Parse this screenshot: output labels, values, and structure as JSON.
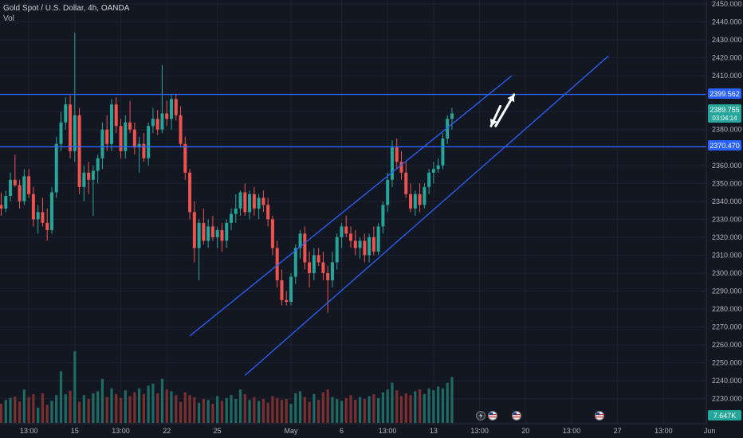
{
  "header": {
    "title": "Gold Spot / U.S. Dollar, 4h, OANDA",
    "volume_label": "Vol"
  },
  "colors": {
    "background": "#131722",
    "grid": "#1e2230",
    "up": "#26a69a",
    "down": "#ef5350",
    "up_volume": "#1e6b63",
    "down_volume": "#7a2f31",
    "horizontal_level": "#2962ff",
    "channel": "#2962ff",
    "axis_text": "#b2b5be",
    "arrow": "#ffffff"
  },
  "chart_data": {
    "type": "candlestick",
    "y_axis": {
      "ylim": [
        2220,
        2450
      ],
      "tick_labels": [
        "2450.000",
        "2440.000",
        "2430.000",
        "2420.000",
        "2410.000",
        "2400.000",
        "2390.000",
        "2380.000",
        "2370.000",
        "2360.000",
        "2350.000",
        "2340.000",
        "2330.000",
        "2320.000",
        "2310.000",
        "2300.000",
        "2290.000",
        "2280.000",
        "2270.000",
        "2260.000",
        "2250.000",
        "2240.000",
        "2230.000"
      ],
      "tick_values": [
        2450,
        2440,
        2430,
        2420,
        2410,
        2400,
        2390,
        2380,
        2370,
        2360,
        2350,
        2340,
        2330,
        2320,
        2310,
        2300,
        2290,
        2280,
        2270,
        2260,
        2250,
        2240,
        2230
      ]
    },
    "x_axis": {
      "tick_labels": [
        "13:00",
        "15",
        "13:00",
        "22",
        "25",
        "May",
        "6",
        "13:00",
        "13",
        "13:00",
        "20",
        "13:00",
        "27",
        "13:00",
        "Jun"
      ],
      "tick_bar_index": [
        6,
        16,
        26,
        36,
        47,
        63,
        74,
        84,
        94,
        104,
        114,
        124,
        134,
        144,
        154
      ]
    },
    "price_labels": {
      "level_high": "2399.562",
      "current_price": "2389.755",
      "countdown": "03:04:14",
      "level_low": "2370.470",
      "volume_value": "7.647K"
    },
    "horizontal_levels": [
      2399.562,
      2370.47
    ],
    "channel": {
      "upper": {
        "from": {
          "bar": 41,
          "price": 2265
        },
        "to": {
          "bar": 111,
          "price": 2410
        }
      },
      "lower": {
        "from": {
          "bar": 53,
          "price": 2243
        },
        "to": {
          "bar": 132,
          "price": 2421
        }
      }
    },
    "projection_arrows": [
      {
        "from": {
          "bar": 108.5,
          "price": 2393
        },
        "to": {
          "bar": 106.5,
          "price": 2382
        }
      },
      {
        "from": {
          "bar": 107.5,
          "price": 2382
        },
        "to": {
          "bar": 111.5,
          "price": 2399.5
        }
      }
    ],
    "candles": [
      [
        2338,
        2345,
        2332,
        2336
      ],
      [
        2336,
        2346,
        2334,
        2343
      ],
      [
        2343,
        2356,
        2340,
        2352
      ],
      [
        2352,
        2366,
        2348,
        2349
      ],
      [
        2349,
        2352,
        2336,
        2340
      ],
      [
        2340,
        2358,
        2338,
        2354
      ],
      [
        2354,
        2358,
        2342,
        2344
      ],
      [
        2344,
        2348,
        2326,
        2330
      ],
      [
        2330,
        2338,
        2322,
        2334
      ],
      [
        2334,
        2342,
        2326,
        2328
      ],
      [
        2328,
        2336,
        2318,
        2324
      ],
      [
        2324,
        2348,
        2322,
        2345
      ],
      [
        2345,
        2376,
        2342,
        2372
      ],
      [
        2372,
        2390,
        2368,
        2384
      ],
      [
        2384,
        2398,
        2380,
        2394
      ],
      [
        2394,
        2399,
        2364,
        2368
      ],
      [
        2368,
        2434,
        2362,
        2388
      ],
      [
        2388,
        2392,
        2344,
        2348
      ],
      [
        2348,
        2360,
        2340,
        2356
      ],
      [
        2356,
        2362,
        2344,
        2352
      ],
      [
        2352,
        2360,
        2332,
        2357
      ],
      [
        2357,
        2366,
        2350,
        2364
      ],
      [
        2364,
        2384,
        2358,
        2380
      ],
      [
        2380,
        2388,
        2368,
        2372
      ],
      [
        2372,
        2397,
        2368,
        2394
      ],
      [
        2394,
        2398,
        2378,
        2382
      ],
      [
        2382,
        2386,
        2364,
        2368
      ],
      [
        2368,
        2388,
        2364,
        2384
      ],
      [
        2384,
        2396,
        2378,
        2380
      ],
      [
        2380,
        2384,
        2366,
        2370
      ],
      [
        2370,
        2376,
        2356,
        2372
      ],
      [
        2372,
        2378,
        2362,
        2364
      ],
      [
        2364,
        2384,
        2360,
        2382
      ],
      [
        2382,
        2392,
        2378,
        2386
      ],
      [
        2386,
        2391,
        2377,
        2380
      ],
      [
        2380,
        2416,
        2378,
        2389
      ],
      [
        2389,
        2396,
        2382,
        2386
      ],
      [
        2386,
        2400,
        2380,
        2397
      ],
      [
        2397,
        2400,
        2385,
        2388
      ],
      [
        2388,
        2393,
        2370,
        2372
      ],
      [
        2372,
        2376,
        2352,
        2356
      ],
      [
        2356,
        2358,
        2330,
        2334
      ],
      [
        2334,
        2340,
        2306,
        2314
      ],
      [
        2314,
        2330,
        2296,
        2328
      ],
      [
        2328,
        2336,
        2316,
        2318
      ],
      [
        2318,
        2330,
        2314,
        2326
      ],
      [
        2326,
        2332,
        2318,
        2320
      ],
      [
        2320,
        2326,
        2314,
        2324
      ],
      [
        2324,
        2328,
        2312,
        2318
      ],
      [
        2318,
        2330,
        2314,
        2328
      ],
      [
        2328,
        2336,
        2324,
        2333
      ],
      [
        2333,
        2344,
        2328,
        2336
      ],
      [
        2336,
        2346,
        2332,
        2345
      ],
      [
        2345,
        2350,
        2332,
        2334
      ],
      [
        2334,
        2346,
        2330,
        2344
      ],
      [
        2344,
        2348,
        2332,
        2336
      ],
      [
        2336,
        2344,
        2330,
        2342
      ],
      [
        2342,
        2346,
        2334,
        2338
      ],
      [
        2338,
        2342,
        2326,
        2330
      ],
      [
        2330,
        2332,
        2310,
        2314
      ],
      [
        2314,
        2318,
        2292,
        2296
      ],
      [
        2296,
        2302,
        2282,
        2285
      ],
      [
        2285,
        2290,
        2282,
        2284
      ],
      [
        2284,
        2300,
        2282,
        2298
      ],
      [
        2298,
        2316,
        2294,
        2314
      ],
      [
        2314,
        2324,
        2308,
        2322
      ],
      [
        2322,
        2326,
        2302,
        2306
      ],
      [
        2306,
        2312,
        2292,
        2300
      ],
      [
        2300,
        2314,
        2296,
        2310
      ],
      [
        2310,
        2314,
        2304,
        2306
      ],
      [
        2306,
        2312,
        2296,
        2300
      ],
      [
        2300,
        2304,
        2278,
        2296
      ],
      [
        2296,
        2312,
        2292,
        2306
      ],
      [
        2306,
        2322,
        2302,
        2320
      ],
      [
        2320,
        2328,
        2314,
        2326
      ],
      [
        2326,
        2332,
        2320,
        2322
      ],
      [
        2322,
        2326,
        2314,
        2318
      ],
      [
        2318,
        2324,
        2310,
        2314
      ],
      [
        2314,
        2320,
        2308,
        2318
      ],
      [
        2318,
        2322,
        2306,
        2310
      ],
      [
        2310,
        2322,
        2306,
        2320
      ],
      [
        2320,
        2326,
        2310,
        2312
      ],
      [
        2312,
        2328,
        2310,
        2326
      ],
      [
        2326,
        2340,
        2322,
        2338
      ],
      [
        2338,
        2356,
        2334,
        2352
      ],
      [
        2352,
        2374,
        2348,
        2370
      ],
      [
        2370,
        2375,
        2358,
        2362
      ],
      [
        2362,
        2368,
        2352,
        2356
      ],
      [
        2356,
        2362,
        2342,
        2344
      ],
      [
        2344,
        2350,
        2334,
        2336
      ],
      [
        2336,
        2346,
        2332,
        2344
      ],
      [
        2344,
        2350,
        2334,
        2338
      ],
      [
        2338,
        2350,
        2336,
        2348
      ],
      [
        2348,
        2358,
        2344,
        2356
      ],
      [
        2356,
        2362,
        2350,
        2358
      ],
      [
        2358,
        2364,
        2356,
        2360
      ],
      [
        2360,
        2378,
        2358,
        2375
      ],
      [
        2375,
        2388,
        2372,
        2386
      ],
      [
        2386,
        2392,
        2380,
        2389
      ]
    ],
    "volumes": [
      40,
      48,
      52,
      55,
      45,
      70,
      54,
      60,
      32,
      62,
      38,
      46,
      58,
      108,
      60,
      67,
      150,
      44,
      58,
      50,
      62,
      66,
      92,
      54,
      72,
      60,
      52,
      68,
      56,
      64,
      72,
      60,
      78,
      82,
      62,
      92,
      70,
      66,
      58,
      44,
      64,
      58,
      54,
      42,
      50,
      48,
      40,
      56,
      46,
      52,
      58,
      50,
      70,
      60,
      48,
      54,
      46,
      50,
      42,
      56,
      52,
      48,
      50,
      40,
      62,
      66,
      54,
      44,
      60,
      48,
      64,
      70,
      54,
      50,
      46,
      52,
      58,
      48,
      54,
      50,
      56,
      60,
      52,
      64,
      70,
      84,
      68,
      56,
      62,
      58,
      66,
      70,
      60,
      72,
      68,
      76,
      72,
      84,
      96
    ]
  }
}
